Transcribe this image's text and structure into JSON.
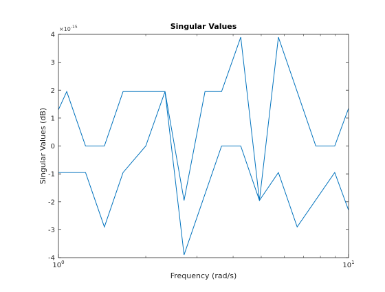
{
  "chart_data": {
    "type": "line",
    "title": "Singular Values",
    "xlabel": "Frequency (rad/s)",
    "ylabel": "Singular Values (dB)",
    "x_scale": "log",
    "xlim": [
      1,
      10
    ],
    "ylim": [
      -4,
      4
    ],
    "y_multiplier": "×10⁻¹⁵",
    "y_exponent_base": "10",
    "y_exponent_power": "-15",
    "grid": false,
    "x_ticks": [
      {
        "value": 1,
        "base": "10",
        "exp": "0"
      },
      {
        "value": 10,
        "base": "10",
        "exp": "1"
      }
    ],
    "y_ticks": [
      4,
      3,
      2,
      1,
      0,
      -1,
      -2,
      -3,
      -4
    ],
    "line_color": "#0072bd",
    "series": [
      {
        "x": [
          1.0,
          1.068,
          1.24,
          1.44,
          1.67,
          2.0,
          2.33,
          2.71,
          3.2,
          3.65,
          4.25,
          4.93,
          5.73,
          6.65,
          7.71,
          8.96,
          10.0
        ],
        "y": [
          1.3,
          1.95,
          0.0,
          0.0,
          1.95,
          1.95,
          1.95,
          -1.95,
          1.95,
          1.95,
          3.9,
          -1.95,
          3.9,
          1.95,
          0.0,
          0.0,
          1.35
        ]
      },
      {
        "x": [
          1.0,
          1.24,
          1.44,
          1.67,
          2.0,
          2.33,
          2.71,
          3.65,
          4.25,
          4.93,
          5.73,
          6.65,
          8.96,
          10.0
        ],
        "y": [
          -0.95,
          -0.95,
          -2.9,
          -0.95,
          0.0,
          1.95,
          -3.9,
          0.0,
          0.0,
          -1.95,
          -0.95,
          -2.9,
          -0.95,
          -2.3
        ]
      }
    ]
  }
}
